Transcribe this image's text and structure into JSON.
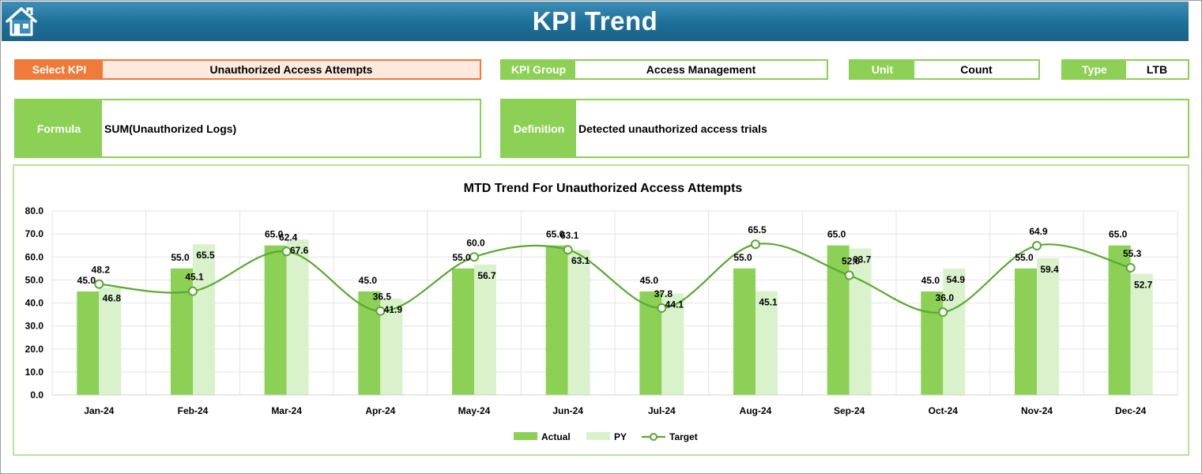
{
  "header": {
    "title": "KPI Trend",
    "home_icon": "home-icon"
  },
  "select_kpi": {
    "label": "Select KPI",
    "value": "Unauthorized Access Attempts"
  },
  "kpi_group": {
    "label": "KPI Group",
    "value": "Access Management"
  },
  "unit": {
    "label": "Unit",
    "value": "Count"
  },
  "type": {
    "label": "Type",
    "value": "LTB"
  },
  "formula": {
    "label": "Formula",
    "value": "SUM(Unauthorized Logs)"
  },
  "definition": {
    "label": "Definition",
    "value": "Detected unauthorized access trials"
  },
  "colors": {
    "header": "#1d6f98",
    "green": "#8cd055",
    "orange": "#f07a3a",
    "actual": "#8cd055",
    "py": "#d9f2cc",
    "target": "#5aa832"
  },
  "chart_data": {
    "type": "bar",
    "title": "MTD Trend For Unauthorized Access Attempts",
    "categories": [
      "Jan-24",
      "Feb-24",
      "Mar-24",
      "Apr-24",
      "May-24",
      "Jun-24",
      "Jul-24",
      "Aug-24",
      "Sep-24",
      "Oct-24",
      "Nov-24",
      "Dec-24"
    ],
    "series": [
      {
        "name": "Actual",
        "type": "bar",
        "values": [
          45.0,
          55.0,
          65.0,
          45.0,
          55.0,
          65.0,
          45.0,
          55.0,
          65.0,
          45.0,
          55.0,
          65.0
        ]
      },
      {
        "name": "PY",
        "type": "bar",
        "values": [
          46.8,
          65.5,
          67.6,
          41.9,
          56.7,
          63.1,
          44.1,
          45.1,
          63.7,
          54.9,
          59.4,
          52.7
        ]
      },
      {
        "name": "Target",
        "type": "line",
        "values": [
          48.2,
          45.1,
          62.4,
          36.5,
          60.0,
          63.1,
          37.8,
          65.5,
          52.0,
          36.0,
          64.9,
          55.3
        ]
      }
    ],
    "ylim": [
      0,
      80
    ],
    "yticks": [
      "0.0",
      "10.0",
      "20.0",
      "30.0",
      "40.0",
      "50.0",
      "60.0",
      "70.0",
      "80.0"
    ],
    "grid": true,
    "legend": "bottom"
  }
}
